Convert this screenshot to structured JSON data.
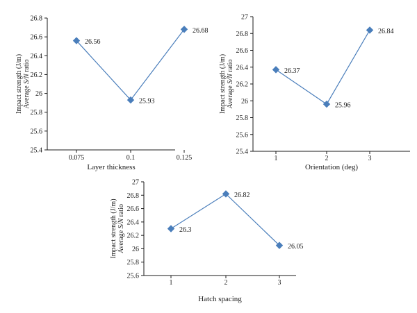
{
  "colors": {
    "series": "#4a7ebb",
    "axis": "#1a1a1a"
  },
  "chart_data": [
    {
      "type": "line",
      "title": "",
      "xlabel": "Layer thickness",
      "ylabel_lines": [
        "Impact strength (J/m)",
        "Average S/N ratio"
      ],
      "categories": [
        "0.075",
        "0.1",
        "0.125"
      ],
      "values": [
        26.56,
        25.93,
        26.68
      ],
      "data_labels": [
        "26.56",
        "25.93",
        "26.68"
      ],
      "ylim": [
        25.4,
        26.8
      ],
      "yticks": [
        "25.4",
        "25.6",
        "25.8",
        "26",
        "26.2",
        "26.4",
        "26.6",
        "26.8"
      ],
      "grid": false,
      "marker": "diamond"
    },
    {
      "type": "line",
      "title": "",
      "xlabel": "Orientation (deg)",
      "ylabel_lines": [
        "Impact strength (J/m)",
        "Average S/N ratio"
      ],
      "categories": [
        "1",
        "2",
        "3"
      ],
      "values": [
        26.37,
        25.96,
        26.84
      ],
      "data_labels": [
        "26.37",
        "25.96",
        "26.84"
      ],
      "ylim": [
        25.4,
        27.0
      ],
      "yticks": [
        "25.4",
        "25.6",
        "25.8",
        "26",
        "26.2",
        "26.4",
        "26.6",
        "26.8",
        "27"
      ],
      "grid": false,
      "marker": "diamond"
    },
    {
      "type": "line",
      "title": "",
      "xlabel": "Hatch spacing",
      "ylabel_lines": [
        "Impact strength (J/m)",
        "Average S/N ratio"
      ],
      "categories": [
        "1",
        "2",
        "3"
      ],
      "values": [
        26.3,
        26.82,
        26.05
      ],
      "data_labels": [
        "26.3",
        "26.82",
        "26.05"
      ],
      "ylim": [
        25.6,
        27.0
      ],
      "yticks": [
        "25.6",
        "25.8",
        "26",
        "26.2",
        "26.4",
        "26.6",
        "26.8",
        "27"
      ],
      "grid": false,
      "marker": "diamond"
    }
  ]
}
